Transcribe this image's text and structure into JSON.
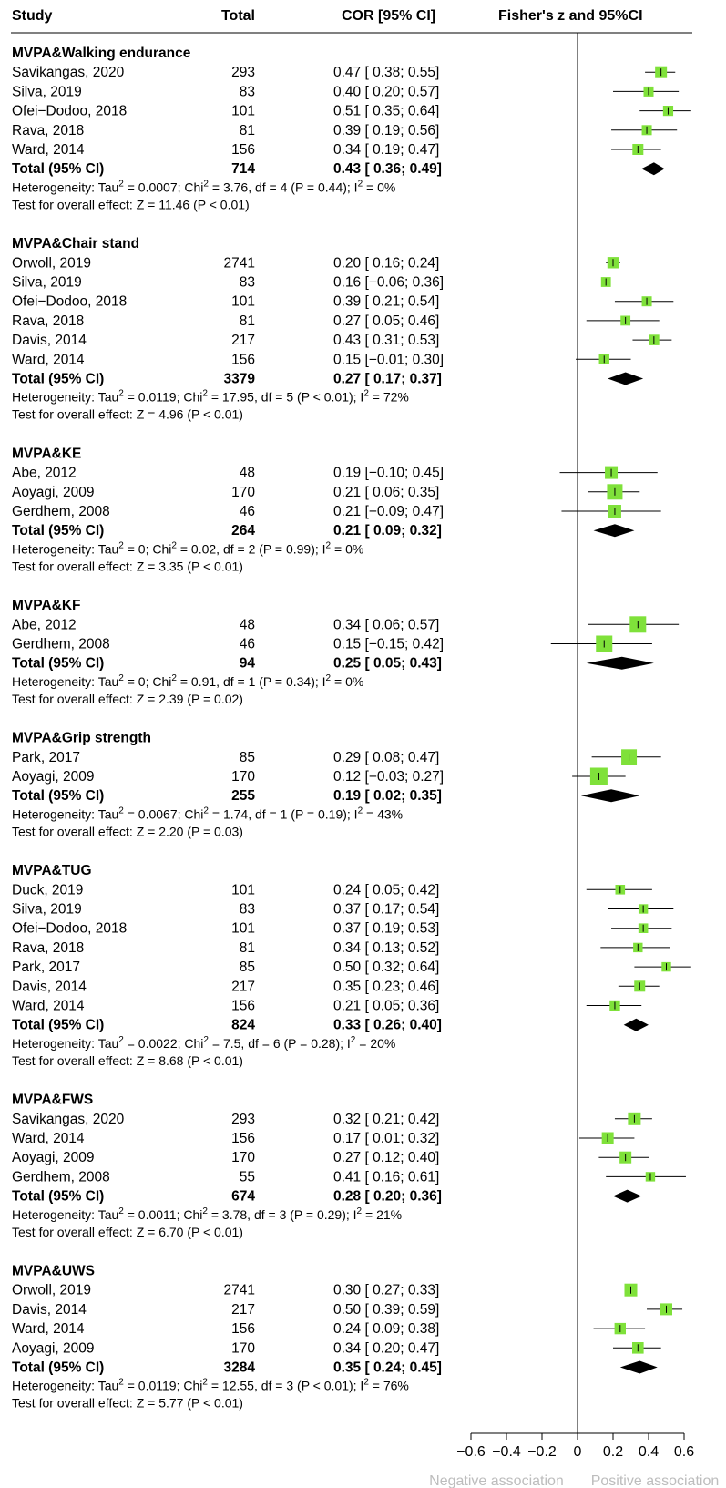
{
  "headers": {
    "study": "Study",
    "total": "Total",
    "cor": "COR [95% CI]",
    "plot": "Fisher's z and 95%CI"
  },
  "footer": {
    "negative": "Negative association",
    "positive": "Positive association"
  },
  "colors": {
    "square": "#7fe13a",
    "diamond": "#000000",
    "line": "#000000",
    "footer_text": "#bdbdbd"
  },
  "chart_data": {
    "type": "forest",
    "x_axis": {
      "range": [
        -0.6,
        0.6
      ],
      "ticks": [
        -0.6,
        -0.4,
        -0.2,
        0,
        0.2,
        0.4,
        0.6
      ],
      "tick_labels": [
        "−0.6",
        "−0.4",
        "−0.2",
        "0",
        "0.2",
        "0.4",
        "0.6"
      ]
    },
    "groups": [
      {
        "title": "MVPA&Walking endurance",
        "studies": [
          {
            "name": "Savikangas, 2020",
            "total": "293",
            "ci_text": "0.47 [ 0.38; 0.55]",
            "est": 0.47,
            "lo": 0.38,
            "hi": 0.55,
            "weight": 0.25
          },
          {
            "name": "Silva, 2019",
            "total": "83",
            "ci_text": "0.40 [ 0.20; 0.57]",
            "est": 0.4,
            "lo": 0.2,
            "hi": 0.57,
            "weight": 0.15
          },
          {
            "name": "Ofei−Dodoo, 2018",
            "total": "101",
            "ci_text": "0.51 [ 0.35; 0.64]",
            "est": 0.51,
            "lo": 0.35,
            "hi": 0.64,
            "weight": 0.16
          },
          {
            "name": "Rava, 2018",
            "total": "81",
            "ci_text": "0.39 [ 0.19; 0.56]",
            "est": 0.39,
            "lo": 0.19,
            "hi": 0.56,
            "weight": 0.15
          },
          {
            "name": "Ward, 2014",
            "total": "156",
            "ci_text": "0.34 [ 0.19; 0.47]",
            "est": 0.34,
            "lo": 0.19,
            "hi": 0.47,
            "weight": 0.2
          }
        ],
        "total": {
          "label": "Total (95% CI)",
          "n": "714",
          "ci_text": "0.43 [ 0.36; 0.49]",
          "est": 0.43,
          "lo": 0.36,
          "hi": 0.49
        },
        "heterogeneity": {
          "tau2": "0.0007",
          "chi2": "3.76",
          "rest": "df = 4 (P = 0.44)",
          "i2": "0%"
        },
        "overall": "Test for overall effect: Z = 11.46 (P < 0.01)"
      },
      {
        "title": "MVPA&Chair stand",
        "studies": [
          {
            "name": "Orwoll, 2019",
            "total": "2741",
            "ci_text": "0.20 [ 0.16; 0.24]",
            "est": 0.2,
            "lo": 0.16,
            "hi": 0.24,
            "weight": 0.22
          },
          {
            "name": "Silva, 2019",
            "total": "83",
            "ci_text": "0.16 [−0.06; 0.36]",
            "est": 0.16,
            "lo": -0.06,
            "hi": 0.36,
            "weight": 0.14
          },
          {
            "name": "Ofei−Dodoo, 2018",
            "total": "101",
            "ci_text": "0.39 [ 0.21; 0.54]",
            "est": 0.39,
            "lo": 0.21,
            "hi": 0.54,
            "weight": 0.15
          },
          {
            "name": "Rava, 2018",
            "total": "81",
            "ci_text": "0.27 [ 0.05; 0.46]",
            "est": 0.27,
            "lo": 0.05,
            "hi": 0.46,
            "weight": 0.14
          },
          {
            "name": "Davis, 2014",
            "total": "217",
            "ci_text": "0.43 [ 0.31; 0.53]",
            "est": 0.43,
            "lo": 0.31,
            "hi": 0.53,
            "weight": 0.18
          },
          {
            "name": "Ward, 2014",
            "total": "156",
            "ci_text": "0.15 [−0.01; 0.30]",
            "est": 0.15,
            "lo": -0.01,
            "hi": 0.3,
            "weight": 0.17
          }
        ],
        "total": {
          "label": "Total (95% CI)",
          "n": "3379",
          "ci_text": "0.27 [ 0.17; 0.37]",
          "est": 0.27,
          "lo": 0.17,
          "hi": 0.37
        },
        "heterogeneity": {
          "tau2": "0.0119",
          "chi2": "17.95",
          "rest": "df = 5 (P < 0.01)",
          "i2": "72%"
        },
        "overall": "Test for overall effect: Z = 4.96 (P < 0.01)"
      },
      {
        "title": "MVPA&KE",
        "studies": [
          {
            "name": "Abe, 2012",
            "total": "48",
            "ci_text": "0.19 [−0.10; 0.45]",
            "est": 0.19,
            "lo": -0.1,
            "hi": 0.45,
            "weight": 0.3
          },
          {
            "name": "Aoyagi, 2009",
            "total": "170",
            "ci_text": "0.21 [ 0.06; 0.35]",
            "est": 0.21,
            "lo": 0.06,
            "hi": 0.35,
            "weight": 0.45
          },
          {
            "name": "Gerdhem, 2008",
            "total": "46",
            "ci_text": "0.21 [−0.09; 0.47]",
            "est": 0.21,
            "lo": -0.09,
            "hi": 0.47,
            "weight": 0.3
          }
        ],
        "total": {
          "label": "Total (95% CI)",
          "n": "264",
          "ci_text": "0.21 [ 0.09; 0.32]",
          "est": 0.21,
          "lo": 0.09,
          "hi": 0.32
        },
        "heterogeneity": {
          "tau2": "0",
          "chi2": "0.02",
          "rest": "df = 2 (P = 0.99)",
          "i2": "0%"
        },
        "overall": "Test for overall effect: Z = 3.35 (P < 0.01)"
      },
      {
        "title": "MVPA&KF",
        "studies": [
          {
            "name": "Abe, 2012",
            "total": "48",
            "ci_text": "0.34 [ 0.06; 0.57]",
            "est": 0.34,
            "lo": 0.06,
            "hi": 0.57,
            "weight": 0.5
          },
          {
            "name": "Gerdhem, 2008",
            "total": "46",
            "ci_text": "0.15 [−0.15; 0.42]",
            "est": 0.15,
            "lo": -0.15,
            "hi": 0.42,
            "weight": 0.5
          }
        ],
        "total": {
          "label": "Total (95% CI)",
          "n": "94",
          "ci_text": "0.25 [ 0.05; 0.43]",
          "est": 0.25,
          "lo": 0.05,
          "hi": 0.43
        },
        "heterogeneity": {
          "tau2": "0",
          "chi2": "0.91",
          "rest": "df = 1 (P = 0.34)",
          "i2": "0%"
        },
        "overall": "Test for overall effect: Z = 2.39 (P = 0.02)"
      },
      {
        "title": "MVPA&Grip strength",
        "studies": [
          {
            "name": "Park, 2017",
            "total": "85",
            "ci_text": "0.29 [ 0.08; 0.47]",
            "est": 0.29,
            "lo": 0.08,
            "hi": 0.47,
            "weight": 0.45
          },
          {
            "name": "Aoyagi, 2009",
            "total": "170",
            "ci_text": "0.12 [−0.03; 0.27]",
            "est": 0.12,
            "lo": -0.03,
            "hi": 0.27,
            "weight": 0.55
          }
        ],
        "total": {
          "label": "Total (95% CI)",
          "n": "255",
          "ci_text": "0.19 [ 0.02; 0.35]",
          "est": 0.19,
          "lo": 0.02,
          "hi": 0.35
        },
        "heterogeneity": {
          "tau2": "0.0067",
          "chi2": "1.74",
          "rest": "df = 1 (P = 0.19)",
          "i2": "43%"
        },
        "overall": "Test for overall effect: Z = 2.20 (P = 0.03)"
      },
      {
        "title": "MVPA&TUG",
        "studies": [
          {
            "name": "Duck, 2019",
            "total": "101",
            "ci_text": "0.24 [ 0.05; 0.42]",
            "est": 0.24,
            "lo": 0.05,
            "hi": 0.42,
            "weight": 0.13
          },
          {
            "name": "Silva, 2019",
            "total": "83",
            "ci_text": "0.37 [ 0.17; 0.54]",
            "est": 0.37,
            "lo": 0.17,
            "hi": 0.54,
            "weight": 0.12
          },
          {
            "name": "Ofei−Dodoo, 2018",
            "total": "101",
            "ci_text": "0.37 [ 0.19; 0.53]",
            "est": 0.37,
            "lo": 0.19,
            "hi": 0.53,
            "weight": 0.13
          },
          {
            "name": "Rava, 2018",
            "total": "81",
            "ci_text": "0.34 [ 0.13; 0.52]",
            "est": 0.34,
            "lo": 0.13,
            "hi": 0.52,
            "weight": 0.12
          },
          {
            "name": "Park, 2017",
            "total": "85",
            "ci_text": "0.50 [ 0.32; 0.64]",
            "est": 0.5,
            "lo": 0.32,
            "hi": 0.64,
            "weight": 0.12
          },
          {
            "name": "Davis, 2014",
            "total": "217",
            "ci_text": "0.35 [ 0.23; 0.46]",
            "est": 0.35,
            "lo": 0.23,
            "hi": 0.46,
            "weight": 0.2
          },
          {
            "name": "Ward, 2014",
            "total": "156",
            "ci_text": "0.21 [ 0.05; 0.36]",
            "est": 0.21,
            "lo": 0.05,
            "hi": 0.36,
            "weight": 0.17
          }
        ],
        "total": {
          "label": "Total (95% CI)",
          "n": "824",
          "ci_text": "0.33 [ 0.26; 0.40]",
          "est": 0.33,
          "lo": 0.26,
          "hi": 0.4
        },
        "heterogeneity": {
          "tau2": "0.0022",
          "chi2": "7.5",
          "rest": "df = 6 (P = 0.28)",
          "i2": "20%"
        },
        "overall": "Test for overall effect: Z = 8.68 (P < 0.01)"
      },
      {
        "title": "MVPA&FWS",
        "studies": [
          {
            "name": "Savikangas, 2020",
            "total": "293",
            "ci_text": "0.32 [ 0.21; 0.42]",
            "est": 0.32,
            "lo": 0.21,
            "hi": 0.42,
            "weight": 0.3
          },
          {
            "name": "Ward, 2014",
            "total": "156",
            "ci_text": "0.17 [ 0.01; 0.32]",
            "est": 0.17,
            "lo": 0.01,
            "hi": 0.32,
            "weight": 0.25
          },
          {
            "name": "Aoyagi, 2009",
            "total": "170",
            "ci_text": "0.27 [ 0.12; 0.40]",
            "est": 0.27,
            "lo": 0.12,
            "hi": 0.4,
            "weight": 0.25
          },
          {
            "name": "Gerdhem, 2008",
            "total": "55",
            "ci_text": "0.41 [ 0.16; 0.61]",
            "est": 0.41,
            "lo": 0.16,
            "hi": 0.61,
            "weight": 0.12
          }
        ],
        "total": {
          "label": "Total (95% CI)",
          "n": "674",
          "ci_text": "0.28 [ 0.20; 0.36]",
          "est": 0.28,
          "lo": 0.2,
          "hi": 0.36
        },
        "heterogeneity": {
          "tau2": "0.0011",
          "chi2": "3.78",
          "rest": "df = 3 (P = 0.29)",
          "i2": "21%"
        },
        "overall": "Test for overall effect: Z = 6.70 (P < 0.01)"
      },
      {
        "title": "MVPA&UWS",
        "studies": [
          {
            "name": "Orwoll, 2019",
            "total": "2741",
            "ci_text": "0.30 [ 0.27; 0.33]",
            "est": 0.3,
            "lo": 0.27,
            "hi": 0.33,
            "weight": 0.3
          },
          {
            "name": "Davis, 2014",
            "total": "217",
            "ci_text": "0.50 [ 0.39; 0.59]",
            "est": 0.5,
            "lo": 0.39,
            "hi": 0.59,
            "weight": 0.25
          },
          {
            "name": "Ward, 2014",
            "total": "156",
            "ci_text": "0.24 [ 0.09; 0.38]",
            "est": 0.24,
            "lo": 0.09,
            "hi": 0.38,
            "weight": 0.22
          },
          {
            "name": "Aoyagi, 2009",
            "total": "170",
            "ci_text": "0.34 [ 0.20; 0.47]",
            "est": 0.34,
            "lo": 0.2,
            "hi": 0.47,
            "weight": 0.23
          }
        ],
        "total": {
          "label": "Total (95% CI)",
          "n": "3284",
          "ci_text": "0.35 [ 0.24; 0.45]",
          "est": 0.35,
          "lo": 0.24,
          "hi": 0.45
        },
        "heterogeneity": {
          "tau2": "0.0119",
          "chi2": "12.55",
          "rest": "df = 3 (P < 0.01)",
          "i2": "76%"
        },
        "overall": "Test for overall effect: Z = 5.77 (P < 0.01)"
      }
    ]
  }
}
